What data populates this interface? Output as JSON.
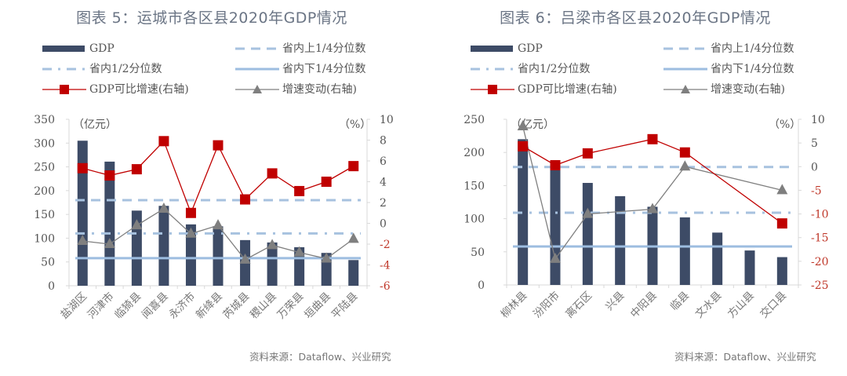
{
  "chart_data": [
    {
      "type": "bar",
      "title": "图表 5：运城市各区县2020年GDP情况",
      "left_unit": "（亿元）",
      "right_unit": "（%）",
      "ylim": [
        0,
        350
      ],
      "y_ticks": [
        "0",
        "50",
        "100",
        "150",
        "200",
        "250",
        "300",
        "350"
      ],
      "y2lim": [
        -6,
        10
      ],
      "y2_ticks": [
        "-6",
        "-4",
        "-2",
        "0",
        "2",
        "4",
        "6",
        "8",
        "10"
      ],
      "categories": [
        "盐湖区",
        "河津市",
        "临猗县",
        "闻喜县",
        "永济市",
        "新绛县",
        "芮城县",
        "稷山县",
        "万荣县",
        "垣曲县",
        "平陆县"
      ],
      "series": [
        {
          "name": "GDP",
          "type": "bar",
          "axis": "left",
          "color": "#3d4b66",
          "values": [
            305,
            261,
            158,
            168,
            129,
            125,
            96,
            91,
            81,
            69,
            54
          ]
        },
        {
          "name": "GDP可比增速(右轴)",
          "type": "line",
          "axis": "right",
          "color": "#c00000",
          "values": [
            5.3,
            4.6,
            5.2,
            7.9,
            1.0,
            7.5,
            2.3,
            4.8,
            3.1,
            4.0,
            5.5
          ]
        },
        {
          "name": "增速变动(右轴)",
          "type": "line",
          "axis": "right",
          "color": "#7f7f7f",
          "values": [
            -1.7,
            -2.0,
            -0.2,
            1.4,
            -1.0,
            -0.2,
            -3.5,
            -2.1,
            -2.8,
            -3.4,
            -1.5
          ]
        }
      ],
      "reference_lines": [
        {
          "name": "省内上1/4分位数",
          "value": 180,
          "style": "dashed",
          "color": "#a7c2df"
        },
        {
          "name": "省内1/2分位数",
          "value": 110,
          "style": "dashdot",
          "color": "#a7c2df"
        },
        {
          "name": "省内下1/4分位数",
          "value": 58,
          "style": "solid",
          "color": "#9dbde0"
        }
      ],
      "legend": [
        "GDP",
        "省内上1/4分位数",
        "省内1/2分位数",
        "省内下1/4分位数",
        "GDP可比增速(右轴)",
        "增速变动(右轴)"
      ],
      "legend_position": "top",
      "source": "资料来源：Dataflow、兴业研究"
    },
    {
      "type": "bar",
      "title": "图表 6：吕梁市各区县2020年GDP情况",
      "left_unit": "（亿元）",
      "right_unit": "（%）",
      "ylim": [
        0,
        250
      ],
      "y_ticks": [
        "0",
        "50",
        "100",
        "150",
        "200",
        "250"
      ],
      "y2lim": [
        -25,
        10
      ],
      "y2_ticks": [
        "-25",
        "-20",
        "-15",
        "-10",
        "-5",
        "0",
        "5",
        "10"
      ],
      "categories": [
        "柳林县",
        "汾阳市",
        "离石区",
        "兴县",
        "中阳县",
        "临县",
        "文水县",
        "方山县",
        "交口县"
      ],
      "series": [
        {
          "name": "GDP",
          "type": "bar",
          "axis": "left",
          "color": "#3d4b66",
          "values": [
            220,
            178,
            154,
            134,
            118,
            102,
            79,
            52,
            42
          ]
        },
        {
          "name": "GDP可比增速(右轴)",
          "type": "line",
          "axis": "right",
          "color": "#c00000",
          "values": [
            4.3,
            0.3,
            2.8,
            null,
            5.8,
            3.0,
            null,
            null,
            -12.0
          ]
        },
        {
          "name": "增速变动(右轴)",
          "type": "line",
          "axis": "right",
          "color": "#7f7f7f",
          "values": [
            8.5,
            -19.5,
            -10.0,
            null,
            -9.0,
            0.0,
            null,
            null,
            -5.0
          ]
        }
      ],
      "reference_lines": [
        {
          "name": "省内上1/4分位数",
          "value": 178,
          "style": "dashed",
          "color": "#a7c2df"
        },
        {
          "name": "省内1/2分位数",
          "value": 109,
          "style": "dashdot",
          "color": "#a7c2df"
        },
        {
          "name": "省内下1/4分位数",
          "value": 58,
          "style": "solid",
          "color": "#9dbde0"
        }
      ],
      "legend": [
        "GDP",
        "省内上1/4分位数",
        "省内1/2分位数",
        "省内下1/4分位数",
        "GDP可比增速(右轴)",
        "增速变动(右轴)"
      ],
      "legend_position": "top",
      "source": "资料来源：Dataflow、兴业研究"
    }
  ]
}
